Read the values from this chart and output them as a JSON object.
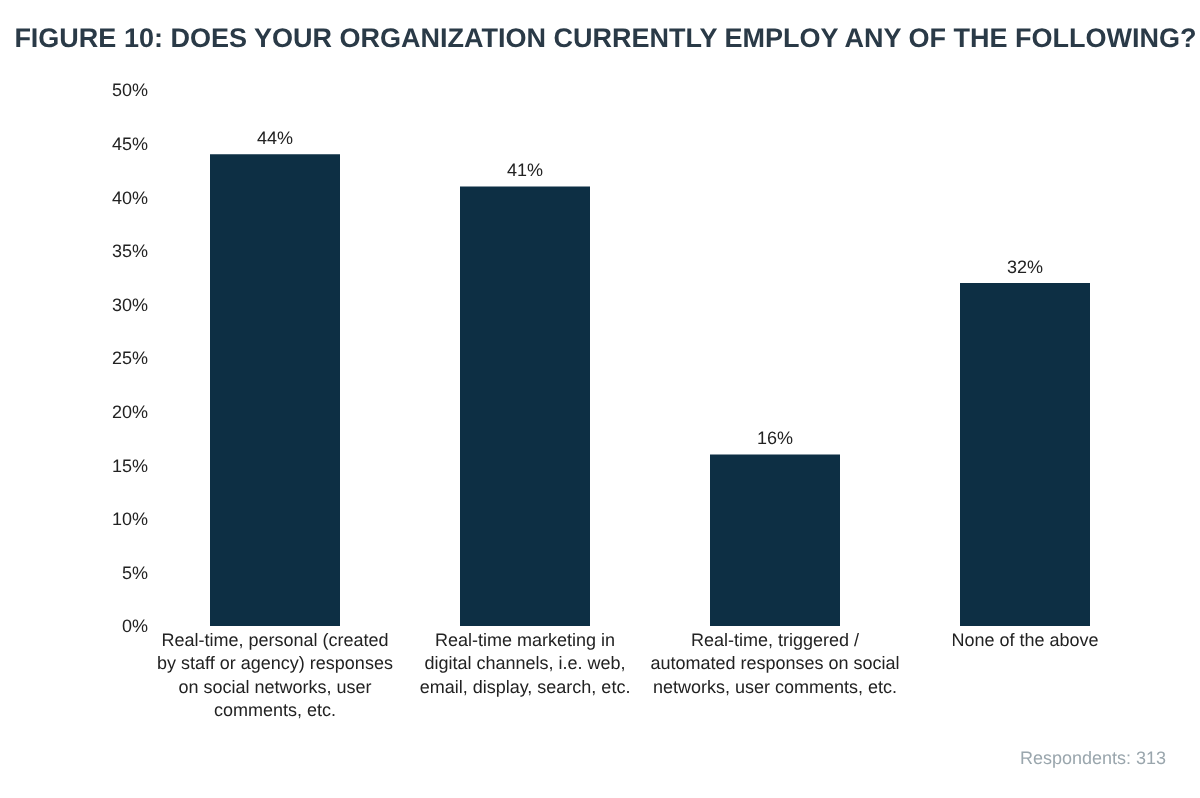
{
  "chart_data": {
    "type": "bar",
    "title": "FIGURE 10: DOES YOUR ORGANIZATION CURRENTLY EMPLOY ANY OF THE FOLLOWING?",
    "categories": [
      "Real-time, personal (created by staff or agency) responses on social networks, user comments, etc.",
      "Real-time marketing in digital channels, i.e. web, email, display, search, etc.",
      "Real-time, triggered / automated responses on social networks, user comments, etc.",
      "None of the above"
    ],
    "values": [
      44,
      41,
      16,
      32
    ],
    "color": "#0d2f44",
    "ylim": [
      0,
      50
    ],
    "yticks": [
      {
        "value": 0,
        "label": "0%"
      },
      {
        "value": 5,
        "label": "5%"
      },
      {
        "value": 10,
        "label": "10%"
      },
      {
        "value": 15,
        "label": "15%"
      },
      {
        "value": 20,
        "label": "20%"
      },
      {
        "value": 25,
        "label": "25%"
      },
      {
        "value": 30,
        "label": "30%"
      },
      {
        "value": 35,
        "label": "35%"
      },
      {
        "value": 40,
        "label": "40%"
      },
      {
        "value": 45,
        "label": "45%"
      },
      {
        "value": 50,
        "label": "50%"
      }
    ],
    "value_labels": [
      "44%",
      "41%",
      "16%",
      "32%"
    ],
    "annotations": [
      "Respondents: 313"
    ]
  }
}
